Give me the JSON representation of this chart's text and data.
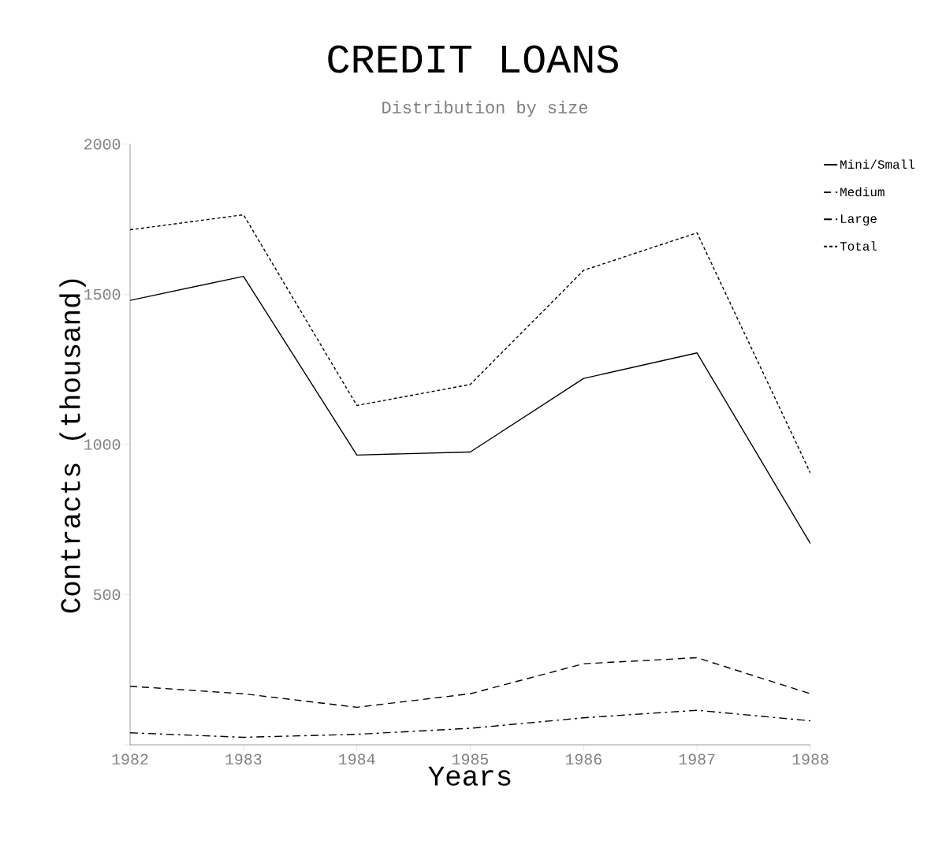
{
  "chart_data": {
    "type": "line",
    "title": "CREDIT LOANS",
    "subtitle": "Distribution by size",
    "xlabel": "Years",
    "ylabel": "Contracts (thousand)",
    "x": [
      1982,
      1983,
      1984,
      1985,
      1986,
      1987,
      1988
    ],
    "xlim": [
      1982,
      1988
    ],
    "xticks": [
      1982,
      1983,
      1984,
      1985,
      1986,
      1987,
      1988
    ],
    "ylim": [
      0,
      2000
    ],
    "yticks": [
      {
        "value": 0,
        "label": null
      },
      500,
      1000,
      1500,
      2000
    ],
    "legend": "right",
    "grid": false,
    "marker": "none",
    "series": [
      {
        "name": "Mini/Small",
        "color": "#000000",
        "line_style": "solid",
        "values": [
          1480,
          1560,
          965,
          975,
          1220,
          1305,
          670
        ]
      },
      {
        "name": "Medium",
        "color": "#000000",
        "line_style": "dashed",
        "values": [
          195,
          170,
          125,
          170,
          270,
          290,
          170
        ]
      },
      {
        "name": "Large",
        "color": "#000000",
        "line_style": "dashdot",
        "values": [
          40,
          25,
          35,
          55,
          90,
          115,
          80
        ]
      },
      {
        "name": "Total",
        "color": "#000000",
        "line_style": "dotted",
        "values": [
          1715,
          1765,
          1130,
          1200,
          1580,
          1705,
          905
        ]
      }
    ]
  }
}
